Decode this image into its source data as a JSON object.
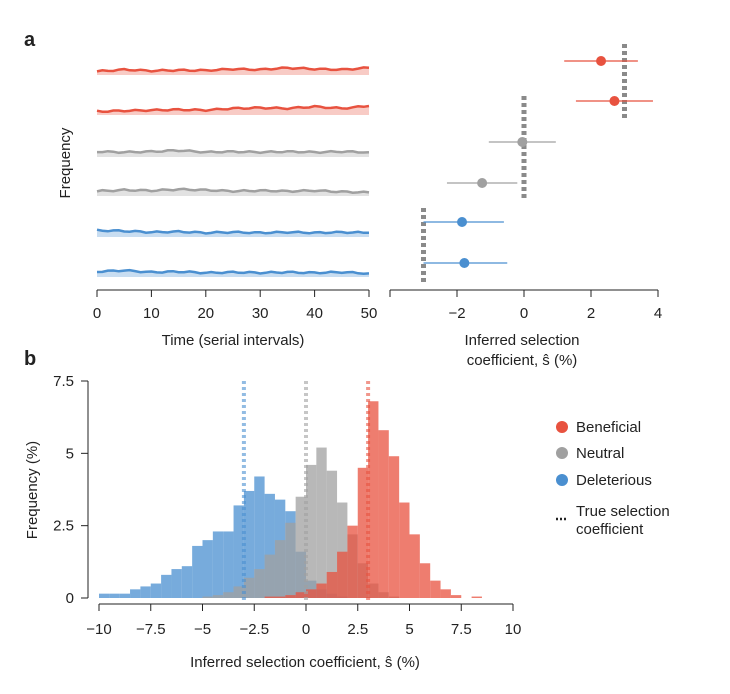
{
  "panel_labels": {
    "a": "a",
    "b": "b"
  },
  "colors": {
    "beneficial": "#e8523f",
    "neutral": "#a0a0a0",
    "deleterious": "#4a8fd0",
    "true_line": "#8a8a8a"
  },
  "chart_data": [
    {
      "type": "line",
      "panel": "a-left",
      "xlabel": "Time (serial intervals)",
      "ylabel": "Frequency",
      "xlim": [
        0,
        50
      ],
      "xticks": [
        "0",
        "10",
        "20",
        "30",
        "40",
        "50"
      ],
      "x": [
        0,
        5,
        10,
        15,
        20,
        25,
        30,
        35,
        40,
        45,
        50
      ],
      "series": [
        {
          "class": "beneficial",
          "values": [
            0.3,
            0.45,
            0.35,
            0.4,
            0.38,
            0.5,
            0.45,
            0.6,
            0.5,
            0.45,
            0.6
          ]
        },
        {
          "class": "beneficial",
          "values": [
            0.3,
            0.35,
            0.4,
            0.45,
            0.4,
            0.55,
            0.6,
            0.55,
            0.7,
            0.55,
            0.75
          ]
        },
        {
          "class": "neutral",
          "values": [
            0.45,
            0.4,
            0.45,
            0.55,
            0.4,
            0.45,
            0.4,
            0.45,
            0.4,
            0.45,
            0.4
          ]
        },
        {
          "class": "neutral",
          "values": [
            0.4,
            0.5,
            0.45,
            0.55,
            0.5,
            0.4,
            0.45,
            0.4,
            0.45,
            0.35,
            0.3
          ]
        },
        {
          "class": "deleterious",
          "values": [
            0.55,
            0.5,
            0.4,
            0.45,
            0.35,
            0.4,
            0.35,
            0.4,
            0.35,
            0.4,
            0.35
          ]
        },
        {
          "class": "deleterious",
          "values": [
            0.45,
            0.55,
            0.4,
            0.45,
            0.35,
            0.4,
            0.35,
            0.4,
            0.35,
            0.4,
            0.3
          ]
        }
      ]
    },
    {
      "type": "scatter",
      "panel": "a-right",
      "xlabel_line1": "Inferred selection",
      "xlabel_line2": "coefficient, ŝ (%)",
      "xlim": [
        -4,
        4
      ],
      "xticks": [
        "−2",
        "0",
        "2",
        "4"
      ],
      "xtick_values": [
        -2,
        0,
        2,
        4
      ],
      "points": [
        {
          "class": "beneficial",
          "estimate": 2.3,
          "low": 1.2,
          "high": 3.4,
          "true": 3
        },
        {
          "class": "beneficial",
          "estimate": 2.7,
          "low": 1.55,
          "high": 3.85,
          "true": 3
        },
        {
          "class": "neutral",
          "estimate": -0.05,
          "low": -1.05,
          "high": 0.95,
          "true": 0
        },
        {
          "class": "neutral",
          "estimate": -1.25,
          "low": -2.3,
          "high": -0.2,
          "true": 0
        },
        {
          "class": "deleterious",
          "estimate": -1.85,
          "low": -3.0,
          "high": -0.6,
          "true": -3
        },
        {
          "class": "deleterious",
          "estimate": -1.78,
          "low": -3.0,
          "high": -0.5,
          "true": -3
        }
      ]
    },
    {
      "type": "bar",
      "panel": "b",
      "xlabel": "Inferred selection coefficient, ŝ (%)",
      "ylabel": "Frequency (%)",
      "xlim": [
        -10,
        10
      ],
      "ylim": [
        0,
        7.5
      ],
      "xticks": [
        "−10",
        "−7.5",
        "−5",
        "−2.5",
        "0",
        "2.5",
        "5",
        "7.5",
        "10"
      ],
      "xtick_values": [
        -10,
        -7.5,
        -5,
        -2.5,
        0,
        2.5,
        5,
        7.5,
        10
      ],
      "yticks": [
        "0",
        "2.5",
        "5",
        "7.5"
      ],
      "ytick_values": [
        0,
        2.5,
        5,
        7.5
      ],
      "bin_start": -10,
      "bin_width": 0.5,
      "series": [
        {
          "name": "Deleterious",
          "class": "deleterious",
          "true": -3,
          "values": [
            0.15,
            0.15,
            0.15,
            0.3,
            0.4,
            0.5,
            0.8,
            1.0,
            1.1,
            1.8,
            2.0,
            2.3,
            2.3,
            3.2,
            3.7,
            4.2,
            3.6,
            3.4,
            3.0,
            1.6,
            0.6,
            0.3,
            0.15,
            0.05,
            0,
            0,
            0,
            0,
            0,
            0,
            0,
            0,
            0,
            0,
            0,
            0,
            0,
            0,
            0,
            0
          ]
        },
        {
          "name": "Neutral",
          "class": "neutral",
          "true": 0,
          "values": [
            0,
            0,
            0,
            0,
            0,
            0,
            0,
            0,
            0,
            0,
            0.05,
            0.1,
            0.2,
            0.4,
            0.7,
            1.0,
            1.5,
            2.0,
            2.6,
            3.5,
            4.6,
            5.2,
            4.4,
            3.3,
            2.2,
            1.2,
            0.5,
            0.2,
            0.05,
            0,
            0,
            0,
            0,
            0,
            0,
            0,
            0,
            0,
            0,
            0
          ]
        },
        {
          "name": "Beneficial",
          "class": "beneficial",
          "true": 3,
          "values": [
            0,
            0,
            0,
            0,
            0,
            0,
            0,
            0,
            0,
            0,
            0,
            0,
            0,
            0,
            0,
            0,
            0.05,
            0.05,
            0.1,
            0.2,
            0.3,
            0.5,
            0.9,
            1.6,
            2.5,
            4.5,
            6.8,
            5.8,
            4.9,
            3.3,
            2.2,
            1.2,
            0.6,
            0.3,
            0.1,
            0,
            0.05,
            0,
            0,
            0
          ]
        }
      ],
      "legend": {
        "placement": "right",
        "items": [
          {
            "label": "Beneficial",
            "class": "beneficial",
            "marker": "dot"
          },
          {
            "label": "Neutral",
            "class": "neutral",
            "marker": "dot"
          },
          {
            "label": "Deleterious",
            "class": "deleterious",
            "marker": "dot"
          },
          {
            "label_line1": "True selection",
            "label_line2": "coefficient",
            "marker": "dotted-line"
          }
        ]
      }
    }
  ]
}
